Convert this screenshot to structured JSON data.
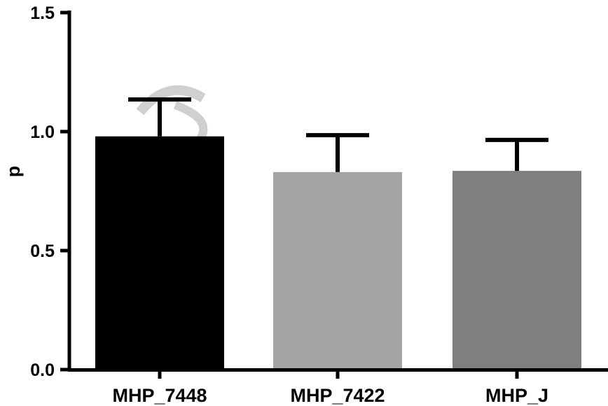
{
  "chart_data": {
    "type": "bar",
    "title": "",
    "xlabel": "",
    "ylabel": "p",
    "ylim": [
      0,
      1.5
    ],
    "y_ticks": [
      {
        "value": 0.0,
        "label": "0.0"
      },
      {
        "value": 0.5,
        "label": "0.5"
      },
      {
        "value": 1.0,
        "label": "1.0"
      },
      {
        "value": 1.5,
        "label": "1.5"
      }
    ],
    "categories": [
      "MHP_7448",
      "MHP_7422",
      "MHP_J"
    ],
    "values": [
      0.98,
      0.83,
      0.835
    ],
    "error_upper": [
      0.155,
      0.155,
      0.13
    ],
    "colors": [
      "#000000",
      "#a3a3a6",
      "#7f7f7f"
    ],
    "grid": false,
    "legend": "none"
  }
}
